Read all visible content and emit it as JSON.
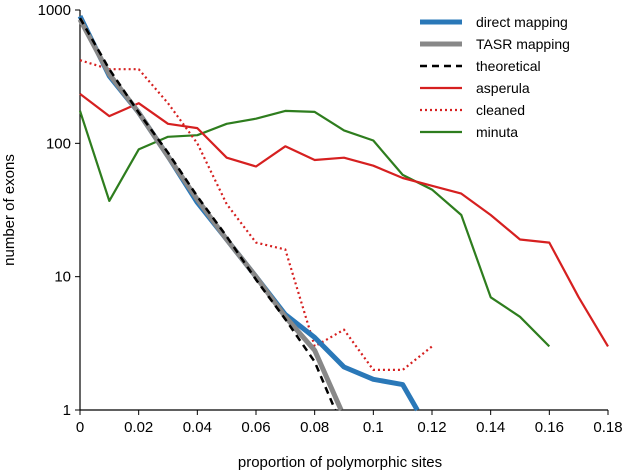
{
  "chart_data": {
    "type": "line",
    "xlabel": "proportion of polymorphic sites",
    "ylabel": "number of exons",
    "xlim": [
      0,
      0.18
    ],
    "ylim": [
      1,
      1000
    ],
    "yscale": "log",
    "xticks": [
      "0",
      "0.02",
      "0.04",
      "0.06",
      "0.08",
      "0.1",
      "0.12",
      "0.14",
      "0.16",
      "0.18"
    ],
    "yticks": [
      "1",
      "10",
      "100",
      "1000"
    ],
    "grid": false,
    "legend_position": "top-right",
    "series": [
      {
        "name": "direct mapping",
        "color": "#2a78b8",
        "style": "solid",
        "width": 5,
        "x": [
          0,
          0.01,
          0.02,
          0.03,
          0.04,
          0.05,
          0.06,
          0.07,
          0.08,
          0.09,
          0.1,
          0.11,
          0.115
        ],
        "y": [
          900,
          320,
          170,
          80,
          36,
          19,
          10,
          5.2,
          3.5,
          2.1,
          1.7,
          1.55,
          1
        ]
      },
      {
        "name": "TASR mapping",
        "color": "#888888",
        "style": "solid",
        "width": 5,
        "x": [
          0,
          0.01,
          0.02,
          0.03,
          0.04,
          0.05,
          0.06,
          0.07,
          0.08,
          0.089
        ],
        "y": [
          850,
          330,
          170,
          80,
          38,
          19,
          10,
          5,
          2.8,
          1
        ]
      },
      {
        "name": "theoretical",
        "color": "#000000",
        "style": "dashed",
        "width": 2.5,
        "x": [
          0,
          0.01,
          0.02,
          0.03,
          0.04,
          0.05,
          0.06,
          0.07,
          0.08,
          0.087
        ],
        "y": [
          870,
          360,
          170,
          85,
          40,
          20,
          9.5,
          4.8,
          2.3,
          1
        ]
      },
      {
        "name": "asperula",
        "color": "#d62020",
        "style": "solid",
        "width": 2.2,
        "x": [
          0,
          0.01,
          0.02,
          0.03,
          0.04,
          0.05,
          0.06,
          0.07,
          0.08,
          0.09,
          0.1,
          0.11,
          0.12,
          0.13,
          0.14,
          0.15,
          0.16,
          0.17,
          0.18
        ],
        "y": [
          235,
          160,
          200,
          140,
          130,
          78,
          67,
          95,
          75,
          78,
          68,
          55,
          48,
          42,
          29,
          19,
          18,
          7,
          3
        ]
      },
      {
        "name": "cleaned",
        "color": "#d62020",
        "style": "dotted",
        "width": 2.2,
        "x": [
          0,
          0.01,
          0.02,
          0.03,
          0.04,
          0.05,
          0.06,
          0.07,
          0.08,
          0.09,
          0.1,
          0.11,
          0.12
        ],
        "y": [
          420,
          360,
          360,
          200,
          100,
          35,
          18,
          16,
          3,
          4,
          2,
          2,
          3
        ]
      },
      {
        "name": "minuta",
        "color": "#2e7d1e",
        "style": "solid",
        "width": 2.2,
        "x": [
          0,
          0.01,
          0.02,
          0.03,
          0.04,
          0.05,
          0.06,
          0.07,
          0.08,
          0.09,
          0.1,
          0.11,
          0.12,
          0.13,
          0.14,
          0.15,
          0.16
        ],
        "y": [
          175,
          37,
          90,
          112,
          115,
          140,
          153,
          175,
          172,
          125,
          105,
          58,
          45,
          29,
          7,
          5,
          3
        ]
      }
    ]
  }
}
